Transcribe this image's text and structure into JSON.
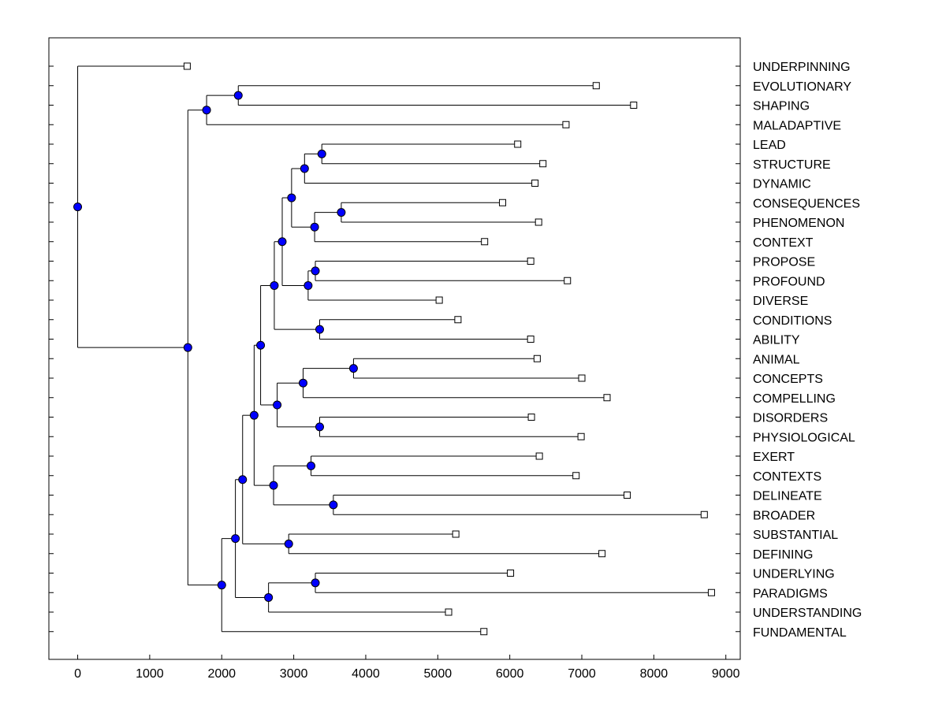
{
  "chart_data": {
    "type": "dendrogram",
    "title": "",
    "xlabel": "",
    "ylabel": "",
    "xlim": [
      -400,
      9200
    ],
    "xticks": [
      0,
      1000,
      2000,
      3000,
      4000,
      5000,
      6000,
      7000,
      8000,
      9000
    ],
    "leaves": [
      {
        "id": 1,
        "label": "UNDERPINNING",
        "x": 1520
      },
      {
        "id": 2,
        "label": "EVOLUTIONARY",
        "x": 7200
      },
      {
        "id": 3,
        "label": "SHAPING",
        "x": 7720
      },
      {
        "id": 4,
        "label": "MALADAPTIVE",
        "x": 6780
      },
      {
        "id": 5,
        "label": "LEAD",
        "x": 6110
      },
      {
        "id": 6,
        "label": "STRUCTURE",
        "x": 6460
      },
      {
        "id": 7,
        "label": "DYNAMIC",
        "x": 6350
      },
      {
        "id": 8,
        "label": "CONSEQUENCES",
        "x": 5900
      },
      {
        "id": 9,
        "label": "PHENOMENON",
        "x": 6400
      },
      {
        "id": 10,
        "label": "CONTEXT",
        "x": 5650
      },
      {
        "id": 11,
        "label": "PROPOSE",
        "x": 6290
      },
      {
        "id": 12,
        "label": "PROFOUND",
        "x": 6800
      },
      {
        "id": 13,
        "label": "DIVERSE",
        "x": 5020
      },
      {
        "id": 14,
        "label": "CONDITIONS",
        "x": 5280
      },
      {
        "id": 15,
        "label": "ABILITY",
        "x": 6290
      },
      {
        "id": 16,
        "label": "ANIMAL",
        "x": 6380
      },
      {
        "id": 17,
        "label": "CONCEPTS",
        "x": 7000
      },
      {
        "id": 18,
        "label": "COMPELLING",
        "x": 7350
      },
      {
        "id": 19,
        "label": "DISORDERS",
        "x": 6300
      },
      {
        "id": 20,
        "label": "PHYSIOLOGICAL",
        "x": 6990
      },
      {
        "id": 21,
        "label": "EXERT",
        "x": 6410
      },
      {
        "id": 22,
        "label": "CONTEXTS",
        "x": 6920
      },
      {
        "id": 23,
        "label": "DELINEATE",
        "x": 7630
      },
      {
        "id": 24,
        "label": "BROADER",
        "x": 8700
      },
      {
        "id": 25,
        "label": "SUBSTANTIAL",
        "x": 5250
      },
      {
        "id": 26,
        "label": "DEFINING",
        "x": 7280
      },
      {
        "id": 27,
        "label": "UNDERLYING",
        "x": 6010
      },
      {
        "id": 28,
        "label": "PARADIGMS",
        "x": 8800
      },
      {
        "id": 29,
        "label": "UNDERSTANDING",
        "x": 5150
      },
      {
        "id": 30,
        "label": "FUNDAMENTAL",
        "x": 5640
      }
    ],
    "merges": [
      {
        "id": "n1",
        "x": 2230,
        "children": [
          2,
          3
        ]
      },
      {
        "id": "n2",
        "x": 1790,
        "children": [
          "n1",
          4
        ]
      },
      {
        "id": "n3",
        "x": 3390,
        "children": [
          5,
          6
        ]
      },
      {
        "id": "n4",
        "x": 3150,
        "children": [
          "n3",
          7
        ]
      },
      {
        "id": "n5",
        "x": 3660,
        "children": [
          8,
          9
        ]
      },
      {
        "id": "n6",
        "x": 3290,
        "children": [
          "n5",
          10
        ]
      },
      {
        "id": "n7",
        "x": 2970,
        "children": [
          "n4",
          "n6"
        ]
      },
      {
        "id": "n8",
        "x": 3300,
        "children": [
          11,
          12
        ]
      },
      {
        "id": "n9",
        "x": 3200,
        "children": [
          "n8",
          13
        ]
      },
      {
        "id": "n10",
        "x": 2840,
        "children": [
          "n7",
          "n9"
        ]
      },
      {
        "id": "n11",
        "x": 3360,
        "children": [
          14,
          15
        ]
      },
      {
        "id": "n12",
        "x": 2730,
        "children": [
          "n10",
          "n11"
        ]
      },
      {
        "id": "n13",
        "x": 3830,
        "children": [
          16,
          17
        ]
      },
      {
        "id": "n14",
        "x": 3130,
        "children": [
          "n13",
          18
        ]
      },
      {
        "id": "n15",
        "x": 3360,
        "children": [
          19,
          20
        ]
      },
      {
        "id": "n16",
        "x": 2770,
        "children": [
          "n14",
          "n15"
        ]
      },
      {
        "id": "n17",
        "x": 2540,
        "children": [
          "n12",
          "n16"
        ]
      },
      {
        "id": "n18",
        "x": 3240,
        "children": [
          21,
          22
        ]
      },
      {
        "id": "n19",
        "x": 3550,
        "children": [
          23,
          24
        ]
      },
      {
        "id": "n20",
        "x": 2720,
        "children": [
          "n18",
          "n19"
        ]
      },
      {
        "id": "n21",
        "x": 2450,
        "children": [
          "n17",
          "n20"
        ]
      },
      {
        "id": "n22",
        "x": 2930,
        "children": [
          25,
          26
        ]
      },
      {
        "id": "n23",
        "x": 2290,
        "children": [
          "n21",
          "n22"
        ]
      },
      {
        "id": "n24",
        "x": 3300,
        "children": [
          27,
          28
        ]
      },
      {
        "id": "n25",
        "x": 2650,
        "children": [
          "n24",
          29
        ]
      },
      {
        "id": "n26",
        "x": 2190,
        "children": [
          "n23",
          "n25"
        ]
      },
      {
        "id": "n27",
        "x": 2000,
        "children": [
          "n26",
          30
        ]
      },
      {
        "id": "n28",
        "x": 1530,
        "children": [
          "n2",
          "n27"
        ]
      },
      {
        "id": "n29",
        "x": 0,
        "children": [
          1,
          "n28"
        ]
      }
    ]
  },
  "colors": {
    "node_fill": "#0000ff",
    "line": "#000000",
    "leaf_marker_fill": "#ffffff"
  }
}
